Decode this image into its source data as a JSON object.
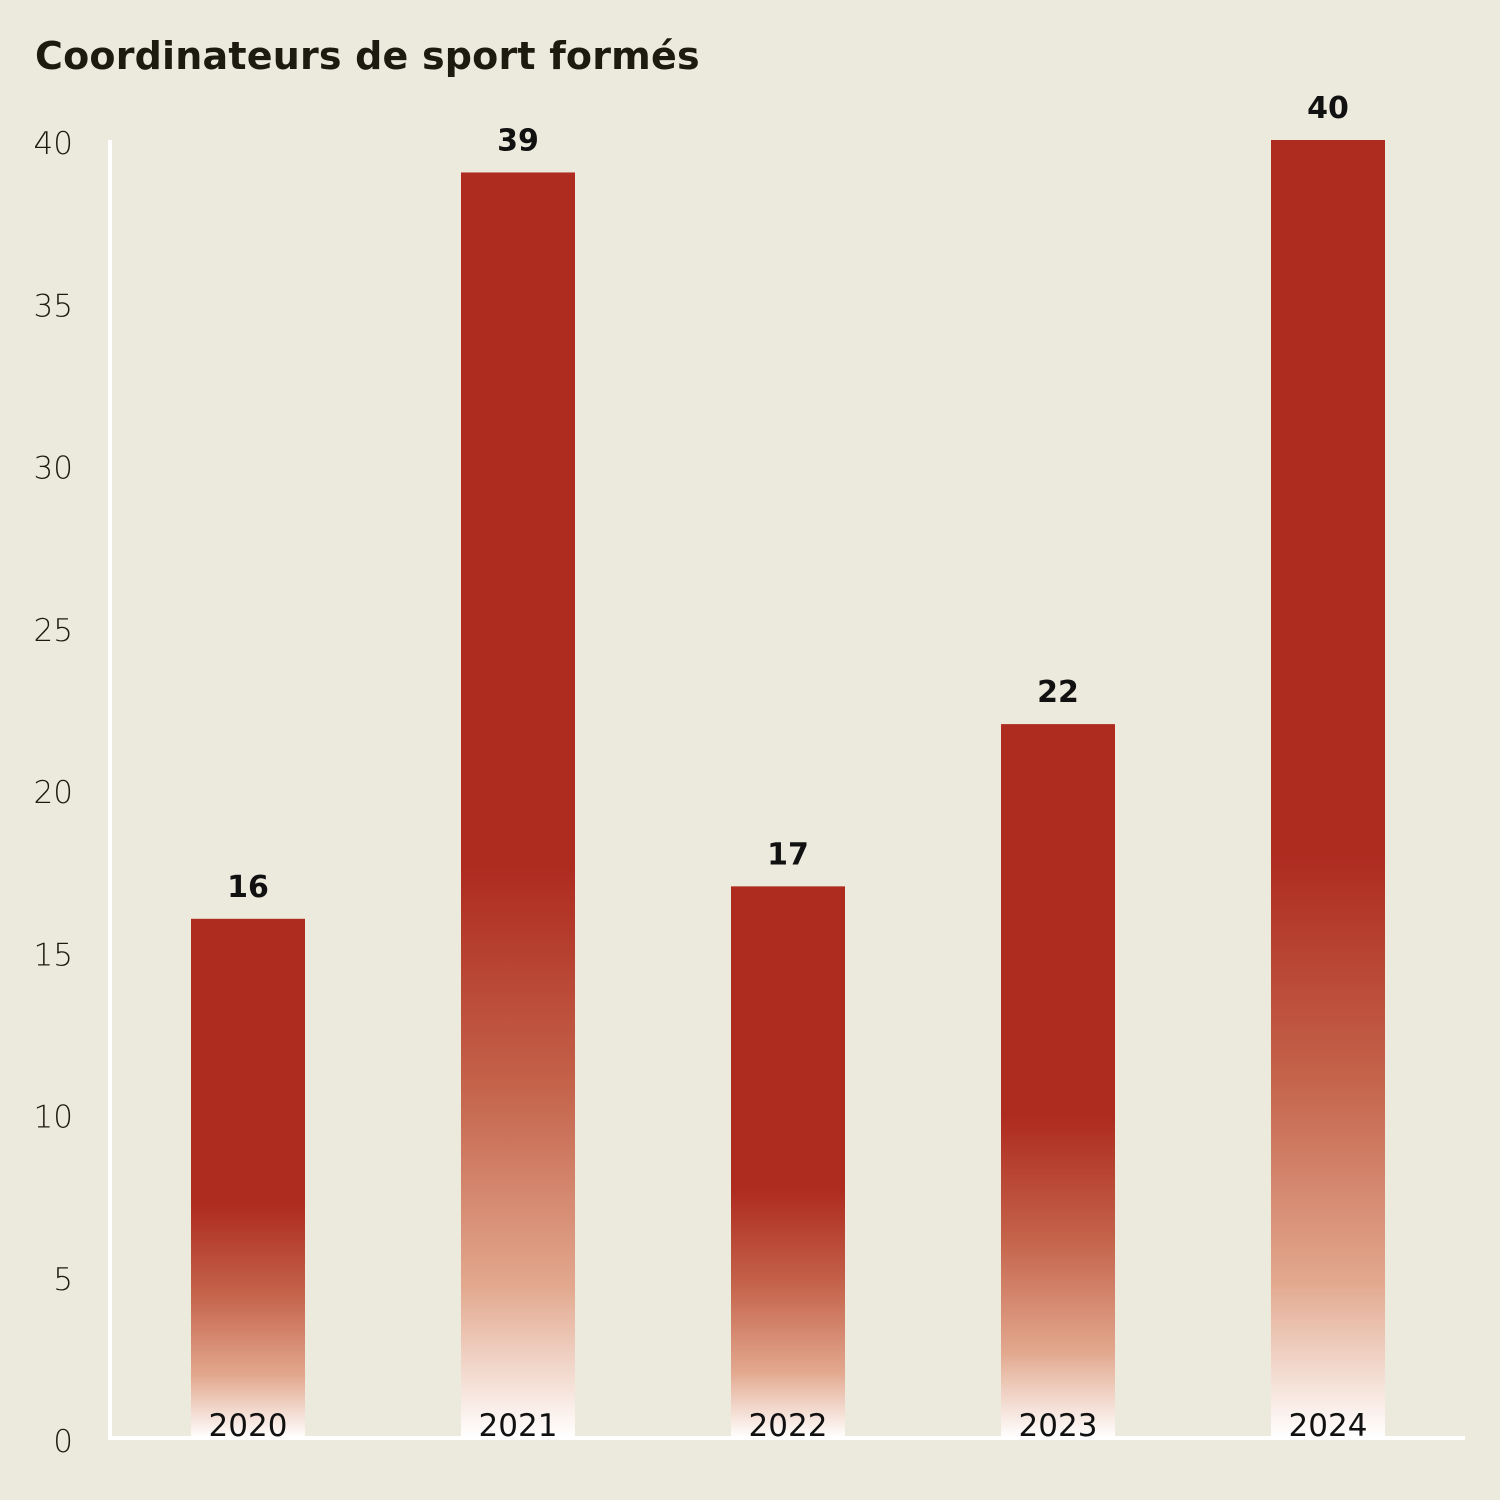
{
  "chart_data": {
    "type": "bar",
    "title": "Coordinateurs de sport formés",
    "categories": [
      "2020",
      "2021",
      "2022",
      "2023",
      "2024"
    ],
    "values": [
      16,
      39,
      17,
      22,
      40
    ],
    "data_labels": [
      "16",
      "39",
      "17",
      "22",
      "40"
    ],
    "xlabel": "",
    "ylabel": "",
    "ylim": [
      0,
      40
    ],
    "yticks": [
      "0",
      "5",
      "10",
      "15",
      "20",
      "25",
      "30",
      "35",
      "40"
    ],
    "grid": false,
    "legend": "none",
    "colors": {
      "bar": "#ae2b20",
      "bar_fade": "#ffffff",
      "background": "#ece9dd",
      "axis": "#ffffff"
    }
  }
}
